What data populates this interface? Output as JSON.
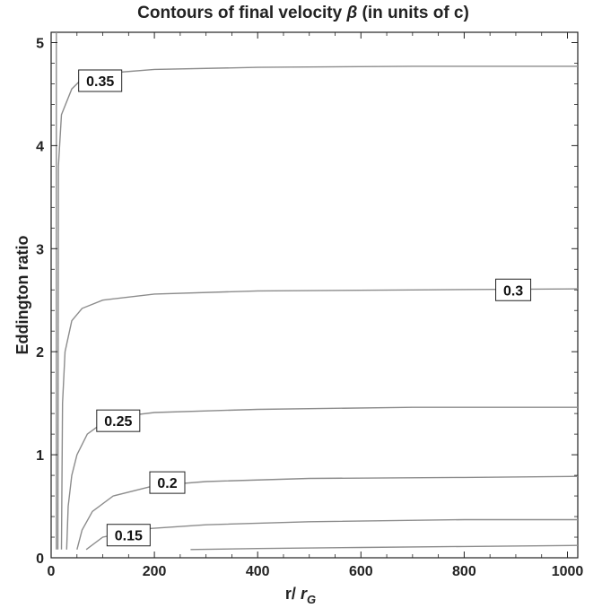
{
  "chart_data": {
    "type": "line",
    "title_main": "Contours of final velocity ",
    "title_symbol": "β",
    "title_suffix": " (in units of c)",
    "xlabel_main": "r/ ",
    "xlabel_symbol": "r",
    "xlabel_subscript": "G",
    "ylabel": "Eddington ratio",
    "xlim": [
      0,
      1020
    ],
    "ylim": [
      0,
      5.1
    ],
    "x_ticks": [
      0,
      200,
      400,
      600,
      800,
      1000
    ],
    "x_tick_labels": [
      "0",
      "200",
      "400",
      "600",
      "800",
      "1000"
    ],
    "y_ticks": [
      0,
      1,
      2,
      3,
      4,
      5
    ],
    "y_tick_labels": [
      "0",
      "1",
      "2",
      "3",
      "4",
      "5"
    ],
    "grid": false,
    "line_color": "#8c8c8c",
    "series": [
      {
        "label": "0.35",
        "label_at": [
          95,
          4.63
        ],
        "points": [
          [
            10,
            0.08
          ],
          [
            10,
            5.1
          ]
        ],
        "upper_points": [
          [
            13,
            0.08
          ],
          [
            14,
            3.8
          ],
          [
            20,
            4.3
          ],
          [
            40,
            4.55
          ],
          [
            60,
            4.65
          ],
          [
            100,
            4.7
          ],
          [
            200,
            4.74
          ],
          [
            400,
            4.76
          ],
          [
            700,
            4.77
          ],
          [
            1020,
            4.77
          ]
        ]
      },
      {
        "label": "0.3",
        "label_at": [
          895,
          2.6
        ],
        "points": [
          [
            20,
            0.08
          ],
          [
            22,
            1.5
          ],
          [
            27,
            2.0
          ],
          [
            40,
            2.3
          ],
          [
            60,
            2.42
          ],
          [
            100,
            2.5
          ],
          [
            200,
            2.56
          ],
          [
            400,
            2.59
          ],
          [
            700,
            2.6
          ],
          [
            1020,
            2.61
          ]
        ]
      },
      {
        "label": "0.25",
        "label_at": [
          130,
          1.33
        ],
        "points": [
          [
            30,
            0.08
          ],
          [
            33,
            0.5
          ],
          [
            40,
            0.8
          ],
          [
            50,
            1.0
          ],
          [
            70,
            1.2
          ],
          [
            100,
            1.31
          ],
          [
            150,
            1.38
          ],
          [
            200,
            1.41
          ],
          [
            400,
            1.44
          ],
          [
            700,
            1.46
          ],
          [
            1020,
            1.46
          ]
        ]
      },
      {
        "label": "0.2",
        "label_at": [
          225,
          0.73
        ],
        "points": [
          [
            50,
            0.08
          ],
          [
            60,
            0.27
          ],
          [
            80,
            0.45
          ],
          [
            120,
            0.6
          ],
          [
            200,
            0.7
          ],
          [
            300,
            0.74
          ],
          [
            500,
            0.77
          ],
          [
            800,
            0.78
          ],
          [
            1020,
            0.79
          ]
        ]
      },
      {
        "label": "0.15",
        "label_at": [
          150,
          0.22
        ],
        "points": [
          [
            68,
            0.08
          ],
          [
            100,
            0.2
          ],
          [
            180,
            0.28
          ],
          [
            300,
            0.32
          ],
          [
            500,
            0.35
          ],
          [
            800,
            0.37
          ],
          [
            1020,
            0.37
          ]
        ]
      },
      {
        "label": "",
        "points": [
          [
            270,
            0.08
          ],
          [
            400,
            0.09
          ],
          [
            600,
            0.1
          ],
          [
            800,
            0.11
          ],
          [
            1020,
            0.12
          ]
        ]
      }
    ]
  }
}
